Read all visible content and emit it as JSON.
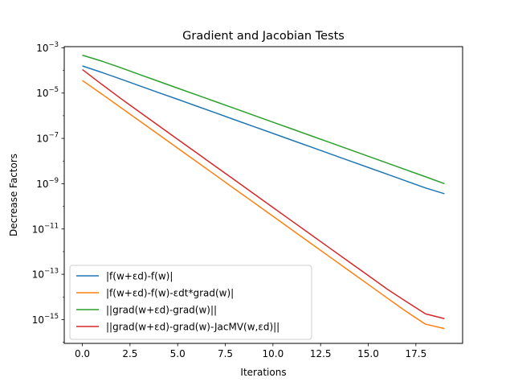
{
  "chart_data": {
    "type": "line",
    "title": "Gradient and Jacobian Tests",
    "xlabel": "Iterations",
    "ylabel": "Decrease Factors",
    "yscale": "log",
    "xlim": [
      -0.95,
      19.95
    ],
    "ylim_exponent": [
      -16.05,
      -2.95
    ],
    "x_ticks": [
      {
        "value": 0,
        "label": "0.0"
      },
      {
        "value": 2.5,
        "label": "2.5"
      },
      {
        "value": 5,
        "label": "5.0"
      },
      {
        "value": 7.5,
        "label": "7.5"
      },
      {
        "value": 10,
        "label": "10.0"
      },
      {
        "value": 12.5,
        "label": "12.5"
      },
      {
        "value": 15,
        "label": "15.0"
      },
      {
        "value": 17.5,
        "label": "17.5"
      }
    ],
    "y_ticks": [
      {
        "exponent": -3,
        "base": "10",
        "exp": "−3"
      },
      {
        "exponent": -5,
        "base": "10",
        "exp": "−5"
      },
      {
        "exponent": -7,
        "base": "10",
        "exp": "−7"
      },
      {
        "exponent": -9,
        "base": "10",
        "exp": "−9"
      },
      {
        "exponent": -11,
        "base": "10",
        "exp": "−11"
      },
      {
        "exponent": -13,
        "base": "10",
        "exp": "−13"
      },
      {
        "exponent": -15,
        "base": "10",
        "exp": "−15"
      }
    ],
    "grid": false,
    "legend_position": "lower-left",
    "x": [
      0,
      1,
      2,
      3,
      4,
      5,
      6,
      7,
      8,
      9,
      10,
      11,
      12,
      13,
      14,
      15,
      16,
      17,
      18,
      19
    ],
    "series": [
      {
        "name": "|f(w+εd)-f(w)|",
        "color": "#1f77b4",
        "values": [
          0.000158,
          8.3e-05,
          4.2e-05,
          2.1e-05,
          1.05e-05,
          5.3e-06,
          2.65e-06,
          1.33e-06,
          6.6e-07,
          3.3e-07,
          1.66e-07,
          8.3e-08,
          4.15e-08,
          2.08e-08,
          1.04e-08,
          5.2e-09,
          2.6e-09,
          1.3e-09,
          6.5e-10,
          3.6e-10
        ]
      },
      {
        "name": "|f(w+εd)-f(w)-εdt*grad(w)|",
        "color": "#ff7f0e",
        "values": [
          3.6e-05,
          9.3e-06,
          2.35e-06,
          5.9e-07,
          1.48e-07,
          3.7e-08,
          9.3e-09,
          2.33e-09,
          5.8e-10,
          1.46e-10,
          3.65e-11,
          9.1e-12,
          2.28e-12,
          5.7e-13,
          1.43e-13,
          3.57e-14,
          8.9e-15,
          2.25e-15,
          6.3e-16,
          4e-16
        ]
      },
      {
        "name": "||grad(w+εd)-grad(w)||",
        "color": "#2ca02c",
        "values": [
          0.00047,
          0.00026,
          0.000133,
          6.6e-05,
          3.3e-05,
          1.65e-05,
          8.3e-06,
          4.15e-06,
          2.08e-06,
          1.04e-06,
          5.2e-07,
          2.6e-07,
          1.3e-07,
          6.5e-08,
          3.25e-08,
          1.62e-08,
          8.1e-09,
          4.05e-09,
          2.03e-09,
          1e-09
        ]
      },
      {
        "name": "||grad(w+εd)-grad(w)-JacMV(w,εd)||",
        "color": "#d62728",
        "values": [
          0.00011,
          2.5e-05,
          5.9e-06,
          1.46e-06,
          3.65e-07,
          9.1e-08,
          2.28e-08,
          5.7e-09,
          1.43e-09,
          3.57e-10,
          8.9e-11,
          2.23e-11,
          5.6e-12,
          1.4e-12,
          3.5e-13,
          8.8e-14,
          2.2e-14,
          6.2e-15,
          1.8e-15,
          1.1e-15
        ]
      }
    ]
  }
}
